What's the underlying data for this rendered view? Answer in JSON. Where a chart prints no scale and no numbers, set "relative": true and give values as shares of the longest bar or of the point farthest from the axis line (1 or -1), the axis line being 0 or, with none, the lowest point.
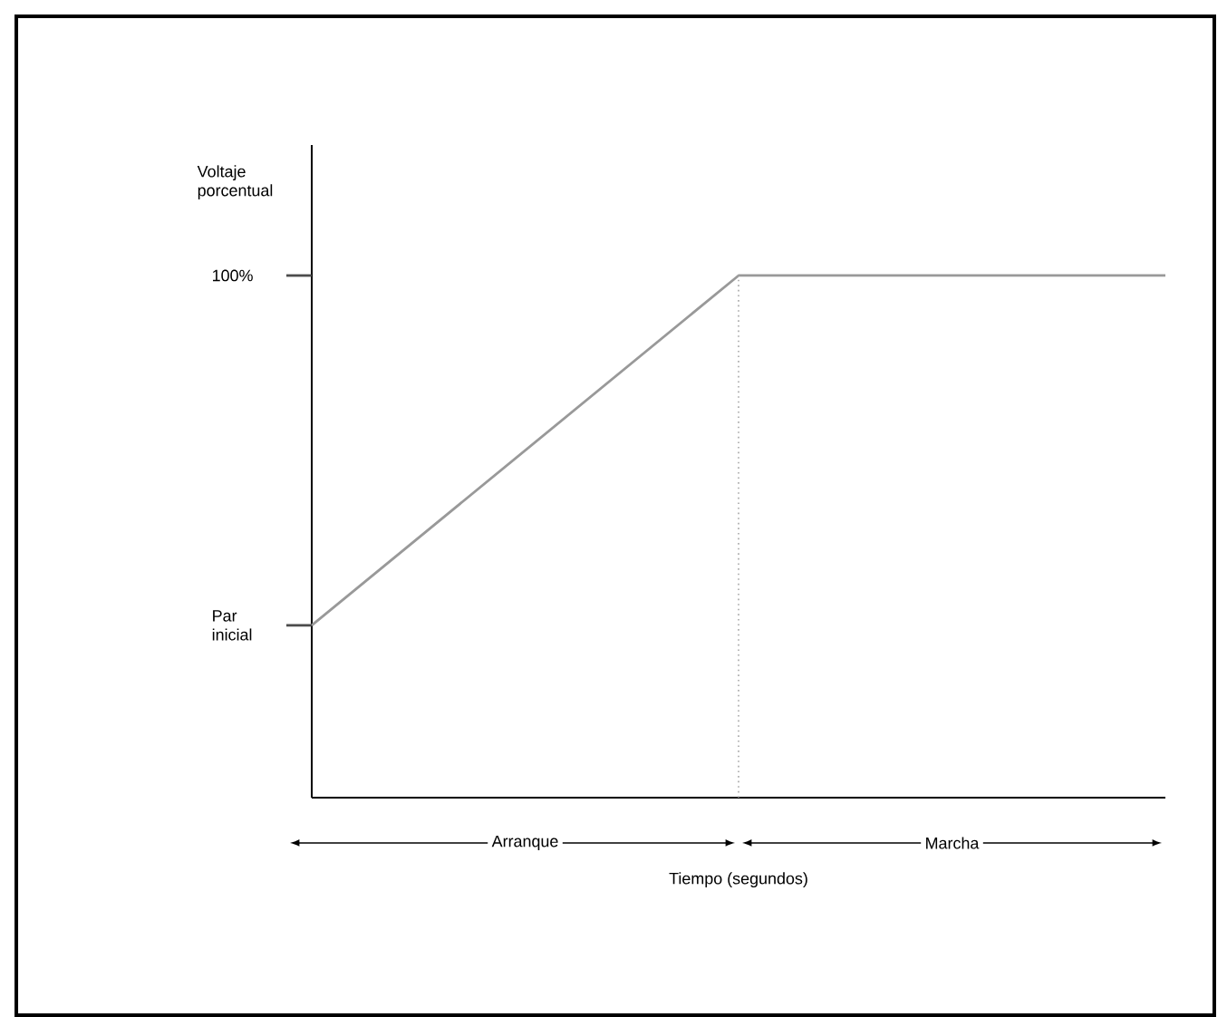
{
  "chart_data": {
    "type": "line",
    "relative": true,
    "xlabel": "Tiempo (segundos)",
    "categories": [
      null,
      null,
      null
    ],
    "values": [
      0.33,
      1,
      1
    ],
    "color": "#999999",
    "marker": "none",
    "line_style": "solid",
    "annotations": [
      "100%",
      "Par inicial",
      "Arranque",
      "Marcha",
      "Voltaje porcentual"
    ]
  }
}
